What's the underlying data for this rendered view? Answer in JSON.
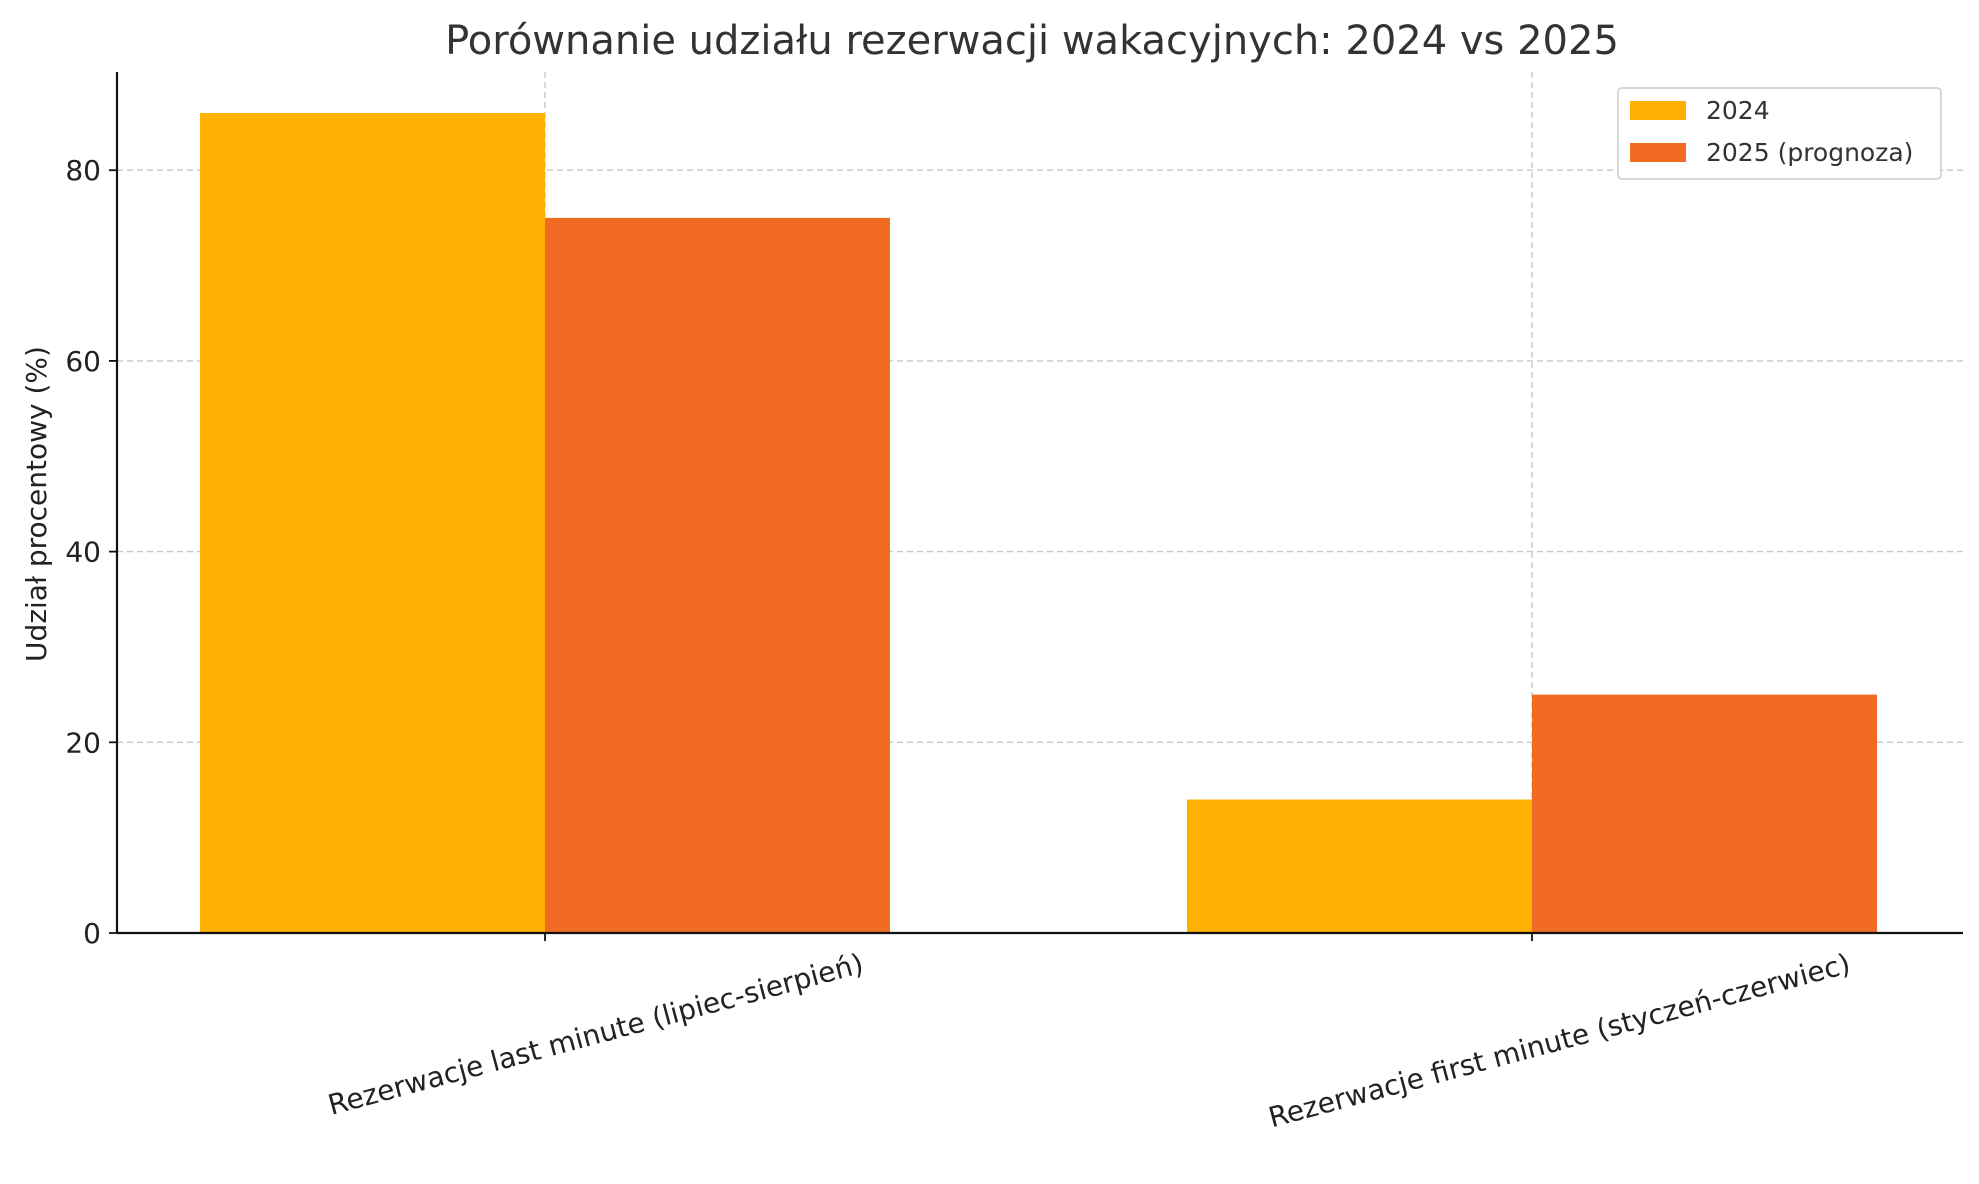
{
  "chart_data": {
    "type": "bar",
    "title": "Porównanie udziału rezerwacji wakacyjnych: 2024 vs 2025",
    "xlabel": "",
    "ylabel": "Udział procentowy (%)",
    "categories": [
      "Rezerwacje last minute (lipiec-sierpień)",
      "Rezerwacje first minute (styczeń-czerwiec)"
    ],
    "series": [
      {
        "name": "2024",
        "values": [
          86,
          14
        ],
        "color": "#FFB000"
      },
      {
        "name": "2025 (prognoza)",
        "values": [
          75,
          25
        ],
        "color": "#F26B22"
      }
    ],
    "yticks": [
      0,
      20,
      40,
      60,
      80
    ],
    "ylim": [
      0,
      90.3
    ],
    "grid": true,
    "legend_position": "top-right"
  }
}
